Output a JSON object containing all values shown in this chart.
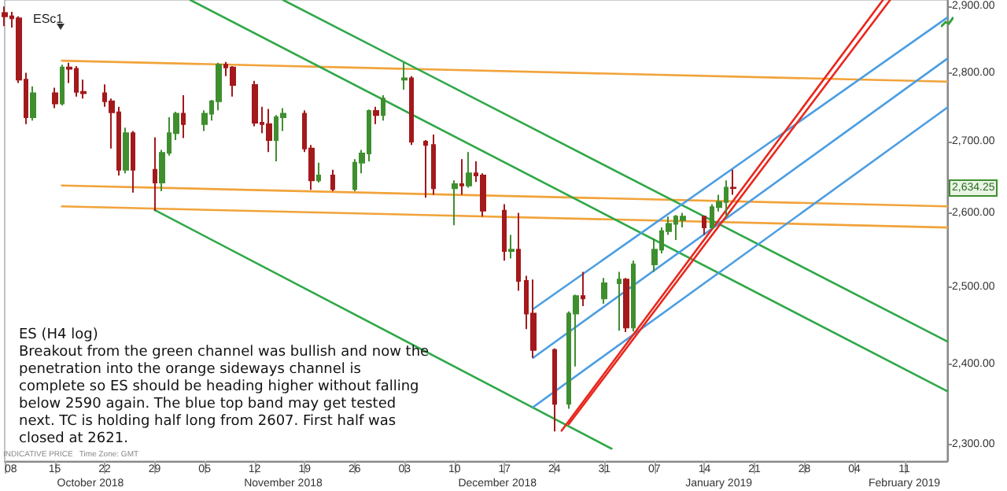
{
  "chart_data": {
    "type": "candlestick",
    "title": "ESc1",
    "x": [
      "2018-10-08",
      "2018-10-09",
      "2018-10-10",
      "2018-10-11",
      "2018-10-12",
      "2018-10-15",
      "2018-10-16",
      "2018-10-17",
      "2018-10-18",
      "2018-10-19",
      "2018-10-22",
      "2018-10-23",
      "2018-10-24",
      "2018-10-25",
      "2018-10-26",
      "2018-10-29",
      "2018-10-30",
      "2018-10-31",
      "2018-11-01",
      "2018-11-02",
      "2018-11-05",
      "2018-11-06",
      "2018-11-07",
      "2018-11-08",
      "2018-11-09",
      "2018-11-12",
      "2018-11-13",
      "2018-11-14",
      "2018-11-15",
      "2018-11-16",
      "2018-11-19",
      "2018-11-20",
      "2018-11-21",
      "2018-11-23",
      "2018-11-26",
      "2018-11-27",
      "2018-11-28",
      "2018-11-29",
      "2018-11-30",
      "2018-12-03",
      "2018-12-04",
      "2018-12-06",
      "2018-12-07",
      "2018-12-10",
      "2018-12-11",
      "2018-12-12",
      "2018-12-13",
      "2018-12-14",
      "2018-12-17",
      "2018-12-18",
      "2018-12-19",
      "2018-12-20",
      "2018-12-21",
      "2018-12-24",
      "2018-12-26",
      "2018-12-27",
      "2018-12-28",
      "2018-12-31",
      "2019-01-02",
      "2019-01-03",
      "2019-01-04",
      "2019-01-07",
      "2019-01-08",
      "2019-01-09",
      "2019-01-10",
      "2019-01-11",
      "2019-01-14",
      "2019-01-15",
      "2019-01-16",
      "2019-01-17",
      "2019-01-18"
    ],
    "ohlc": [
      [
        2890,
        2900,
        2870,
        2885
      ],
      [
        2885,
        2892,
        2868,
        2882
      ],
      [
        2882,
        2885,
        2785,
        2790
      ],
      [
        2790,
        2800,
        2725,
        2735
      ],
      [
        2735,
        2780,
        2730,
        2770
      ],
      [
        2770,
        2778,
        2748,
        2755
      ],
      [
        2755,
        2812,
        2752,
        2808
      ],
      [
        2808,
        2815,
        2785,
        2806
      ],
      [
        2806,
        2810,
        2765,
        2772
      ],
      [
        2772,
        2790,
        2762,
        2770
      ],
      [
        2770,
        2783,
        2750,
        2758
      ],
      [
        2758,
        2762,
        2690,
        2742
      ],
      [
        2742,
        2750,
        2652,
        2660
      ],
      [
        2660,
        2720,
        2655,
        2712
      ],
      [
        2712,
        2715,
        2628,
        2660
      ],
      [
        2660,
        2706,
        2603,
        2642
      ],
      [
        2642,
        2688,
        2630,
        2684
      ],
      [
        2684,
        2735,
        2680,
        2712
      ],
      [
        2712,
        2743,
        2702,
        2740
      ],
      [
        2740,
        2767,
        2705,
        2725
      ],
      [
        2725,
        2745,
        2715,
        2740
      ],
      [
        2740,
        2760,
        2730,
        2758
      ],
      [
        2758,
        2815,
        2745,
        2812
      ],
      [
        2812,
        2816,
        2795,
        2808
      ],
      [
        2808,
        2810,
        2765,
        2782
      ],
      [
        2782,
        2788,
        2722,
        2727
      ],
      [
        2727,
        2750,
        2712,
        2725
      ],
      [
        2725,
        2747,
        2685,
        2702
      ],
      [
        2702,
        2738,
        2672,
        2735
      ],
      [
        2735,
        2748,
        2715,
        2740
      ],
      [
        2740,
        2745,
        2685,
        2690
      ],
      [
        2690,
        2695,
        2632,
        2645
      ],
      [
        2645,
        2670,
        2642,
        2652
      ],
      [
        2652,
        2660,
        2630,
        2633
      ],
      [
        2633,
        2675,
        2630,
        2670
      ],
      [
        2670,
        2688,
        2655,
        2683
      ],
      [
        2683,
        2746,
        2672,
        2744
      ],
      [
        2744,
        2750,
        2725,
        2738
      ],
      [
        2738,
        2767,
        2730,
        2762
      ],
      [
        2790,
        2815,
        2775,
        2792
      ],
      [
        2792,
        2795,
        2695,
        2700
      ],
      [
        2700,
        2702,
        2621,
        2695
      ],
      [
        2695,
        2710,
        2625,
        2634
      ],
      [
        2634,
        2645,
        2583,
        2640
      ],
      [
        2640,
        2675,
        2625,
        2638
      ],
      [
        2638,
        2685,
        2635,
        2655
      ],
      [
        2655,
        2672,
        2643,
        2652
      ],
      [
        2652,
        2655,
        2595,
        2603
      ],
      [
        2603,
        2612,
        2535,
        2548
      ],
      [
        2548,
        2570,
        2538,
        2550
      ],
      [
        2550,
        2600,
        2495,
        2508
      ],
      [
        2508,
        2515,
        2445,
        2465
      ],
      [
        2465,
        2510,
        2408,
        2418
      ],
      [
        2418,
        2420,
        2316,
        2350
      ],
      [
        2350,
        2468,
        2344,
        2465
      ],
      [
        2465,
        2490,
        2397,
        2488
      ],
      [
        2488,
        2520,
        2475,
        2485
      ],
      [
        2485,
        2512,
        2478,
        2505
      ],
      [
        2505,
        2520,
        2443,
        2510
      ],
      [
        2510,
        2512,
        2441,
        2447
      ],
      [
        2447,
        2535,
        2442,
        2530
      ],
      [
        2530,
        2565,
        2520,
        2550
      ],
      [
        2550,
        2580,
        2545,
        2575
      ],
      [
        2575,
        2595,
        2570,
        2585
      ],
      [
        2585,
        2597,
        2563,
        2595
      ],
      [
        2590,
        2600,
        2580,
        2595
      ],
      [
        2595,
        2596,
        2570,
        2580
      ],
      [
        2580,
        2612,
        2578,
        2608
      ],
      [
        2608,
        2625,
        2602,
        2615
      ],
      [
        2615,
        2645,
        2595,
        2635
      ],
      [
        2635,
        2660,
        2625,
        2634.25
      ]
    ],
    "colors": [
      "#a3191c",
      "#a3191c",
      "#a3191c",
      "#a3191c",
      "#3f8f2f",
      "#a3191c",
      "#3f8f2f",
      "#a3191c",
      "#a3191c",
      "#a3191c",
      "#a3191c",
      "#a3191c",
      "#a3191c",
      "#3f8f2f",
      "#a3191c",
      "#a3191c",
      "#3f8f2f",
      "#3f8f2f",
      "#3f8f2f",
      "#a3191c",
      "#3f8f2f",
      "#3f8f2f",
      "#3f8f2f",
      "#a3191c",
      "#a3191c",
      "#a3191c",
      "#a3191c",
      "#a3191c",
      "#3f8f2f",
      "#3f8f2f",
      "#a3191c",
      "#a3191c",
      "#3f8f2f",
      "#a3191c",
      "#3f8f2f",
      "#3f8f2f",
      "#3f8f2f",
      "#a3191c",
      "#3f8f2f",
      "#3f8f2f",
      "#a3191c",
      "#a3191c",
      "#a3191c",
      "#3f8f2f",
      "#a3191c",
      "#3f8f2f",
      "#a3191c",
      "#a3191c",
      "#a3191c",
      "#3f8f2f",
      "#a3191c",
      "#a3191c",
      "#a3191c",
      "#a3191c",
      "#3f8f2f",
      "#3f8f2f",
      "#a3191c",
      "#3f8f2f",
      "#3f8f2f",
      "#a3191c",
      "#3f8f2f",
      "#3f8f2f",
      "#3f8f2f",
      "#3f8f2f",
      "#3f8f2f",
      "#3f8f2f",
      "#a3191c",
      "#3f8f2f",
      "#3f8f2f",
      "#3f8f2f",
      "#a3191c"
    ],
    "series": [
      {
        "type": "line",
        "color": "#f2a33a",
        "x": [
          "2018-10-16",
          "2019-02-17"
        ],
        "values": [
          2818,
          2787
        ]
      },
      {
        "type": "line",
        "color": "#f2a33a",
        "x": [
          "2018-10-16",
          "2019-02-17"
        ],
        "values": [
          2638,
          2609
        ]
      },
      {
        "type": "line",
        "color": "#f2a33a",
        "x": [
          "2018-10-16",
          "2019-02-17"
        ],
        "values": [
          2609,
          2580
        ]
      },
      {
        "type": "line",
        "color": "#30a848",
        "x": [
          "2018-11-16",
          "2019-02-17"
        ],
        "values": [
          2910,
          2429
        ]
      },
      {
        "type": "line",
        "color": "#30a848",
        "x": [
          "2018-11-03",
          "2019-02-17"
        ],
        "values": [
          2910,
          2366
        ]
      },
      {
        "type": "line",
        "color": "#30a848",
        "x": [
          "2018-10-29",
          "2019-01-01"
        ],
        "values": [
          2604,
          2295
        ]
      },
      {
        "type": "line",
        "color": "#4b9ee3",
        "x": [
          "2018-12-21",
          "2019-02-17"
        ],
        "values": [
          2471,
          2883
        ]
      },
      {
        "type": "line",
        "color": "#4b9ee3",
        "x": [
          "2018-12-21",
          "2019-02-17"
        ],
        "values": [
          2408,
          2821
        ]
      },
      {
        "type": "line",
        "color": "#4b9ee3",
        "x": [
          "2018-12-21",
          "2019-02-17"
        ],
        "values": [
          2346,
          2749
        ]
      },
      {
        "type": "line",
        "color": "#e8281e",
        "x": [
          "2018-12-25",
          "2019-02-08"
        ],
        "values": [
          2317,
          2910
        ]
      },
      {
        "type": "line",
        "color": "#e8281e",
        "x": [
          "2018-12-26",
          "2019-02-09"
        ],
        "values": [
          2325,
          2910
        ]
      }
    ],
    "log": true,
    "grid": false,
    "xlim": [
      "2018-10-08",
      "2019-02-17"
    ],
    "xticks": [
      {
        "value": "2018-10-08",
        "label": "08"
      },
      {
        "value": "2018-10-15",
        "label": "15"
      },
      {
        "value": "2018-10-22",
        "label": "22"
      },
      {
        "value": "2018-10-29",
        "label": "29"
      },
      {
        "value": "2018-11-05",
        "label": "05"
      },
      {
        "value": "2018-11-12",
        "label": "12"
      },
      {
        "value": "2018-11-19",
        "label": "19"
      },
      {
        "value": "2018-11-26",
        "label": "26"
      },
      {
        "value": "2018-12-03",
        "label": "03"
      },
      {
        "value": "2018-12-10",
        "label": "10"
      },
      {
        "value": "2018-12-17",
        "label": "17"
      },
      {
        "value": "2018-12-24",
        "label": "24"
      },
      {
        "value": "2018-12-31",
        "label": "31"
      },
      {
        "value": "2019-01-07",
        "label": "07"
      },
      {
        "value": "2019-01-14",
        "label": "14"
      },
      {
        "value": "2019-01-21",
        "label": "21"
      },
      {
        "value": "2019-01-28",
        "label": "28"
      },
      {
        "value": "2019-02-04",
        "label": "04"
      },
      {
        "value": "2019-02-11",
        "label": "11"
      }
    ],
    "x2lim": [
      "2018-10-08",
      "2019-02-17"
    ],
    "x2ticks": [
      {
        "value": "2018-10-20",
        "label": "October 2018"
      },
      {
        "value": "2018-11-16",
        "label": "November 2018"
      },
      {
        "value": "2018-12-16",
        "label": "December 2018"
      },
      {
        "value": "2019-01-16",
        "label": "January 2019"
      },
      {
        "value": "2019-02-11",
        "label": "February 2019"
      }
    ],
    "ylim": [
      2280,
      2910
    ],
    "yticks": [
      {
        "value": 2300,
        "label": "2,300.00"
      },
      {
        "value": 2400,
        "label": "2,400.00"
      },
      {
        "value": 2500,
        "label": "2,500.00"
      },
      {
        "value": 2600,
        "label": "2,600.00"
      },
      {
        "value": 2700,
        "label": "2,700.00"
      },
      {
        "value": 2800,
        "label": "2,800.00"
      },
      {
        "value": 2900,
        "label": "2,900.00"
      }
    ],
    "annotations": [
      "2,634.25",
      "ES (H4 log)",
      "Breakout from the green channel was bullish and now the penetration into the orange sideways channel is complete so ES should be heading higher without falling below 2590 again. The blue top band may get tested next. TC is holding half long from 2607. First half was closed at 2621.",
      "INDICATIVE PRICE   Time Zone: GMT"
    ]
  }
}
